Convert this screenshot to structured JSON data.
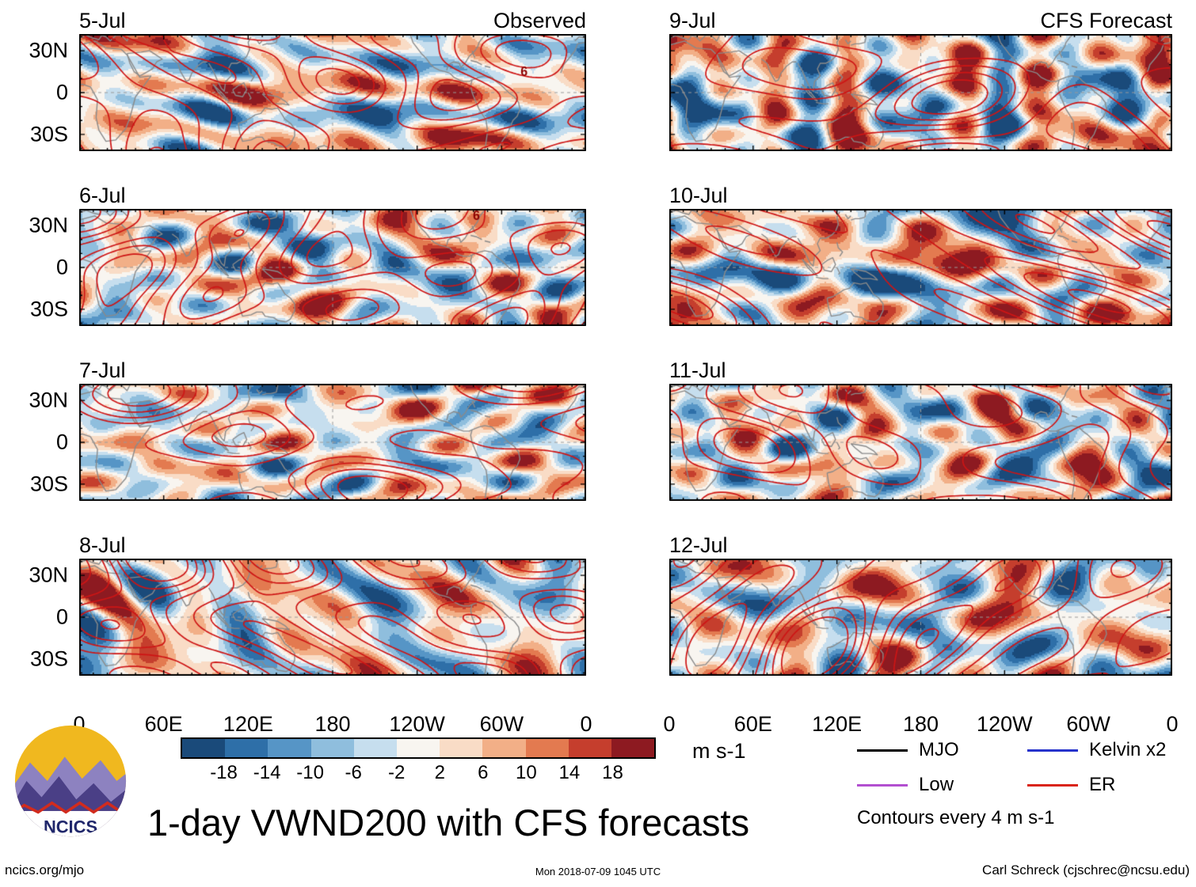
{
  "chart_data": {
    "type": "heatmap",
    "title": "1-day VWND200 with CFS forecasts",
    "field": "VWND200",
    "columns": [
      {
        "label": "Observed",
        "dates": [
          "5-Jul",
          "6-Jul",
          "7-Jul",
          "8-Jul"
        ]
      },
      {
        "label": "CFS Forecast",
        "dates": [
          "9-Jul",
          "10-Jul",
          "11-Jul",
          "12-Jul"
        ]
      }
    ],
    "ytick_labels": [
      "30N",
      "0",
      "30S"
    ],
    "xtick_labels": [
      "0",
      "60E",
      "120E",
      "180",
      "120W",
      "60W",
      "0"
    ],
    "lat_limits": [
      -42,
      42
    ],
    "lon_limits": [
      0,
      360
    ],
    "colorbar": {
      "tick_labels": [
        "-18",
        "-14",
        "-10",
        "-6",
        "-2",
        "2",
        "6",
        "10",
        "14",
        "18"
      ],
      "units_label": "m s-1",
      "colors": [
        "#1a4a7a",
        "#2e6fa8",
        "#5695c6",
        "#8fbedd",
        "#c6deee",
        "#f8f5f0",
        "#f9dcc6",
        "#f2af87",
        "#e37a50",
        "#c53e2d",
        "#8d1a21"
      ]
    },
    "legend": {
      "items": [
        {
          "label": "MJO",
          "color": "#000000"
        },
        {
          "label": "Low",
          "color": "#b24fd0"
        },
        {
          "label": "Kelvin x2",
          "color": "#2633cc"
        },
        {
          "label": "ER",
          "color": "#da2418"
        }
      ],
      "note": "Contours every 4 m s-1"
    },
    "contour_interval": 4,
    "style": {
      "contour_color": "#ce1515",
      "coast_color": "#8a8a8a",
      "grid_dash_color": "#999999"
    },
    "annotations": [
      {
        "column": 0,
        "row": 0,
        "lon": 316,
        "lat": 12,
        "text": "6"
      },
      {
        "column": 0,
        "row": 1,
        "lon": 282,
        "lat": 34,
        "text": "6"
      }
    ]
  },
  "logo": {
    "text": "NCICS"
  },
  "footer": {
    "left": "ncics.org/mjo",
    "center": "Mon 2018-07-09 1045 UTC",
    "right": "Carl Schreck (cjschrec@ncsu.edu)"
  }
}
